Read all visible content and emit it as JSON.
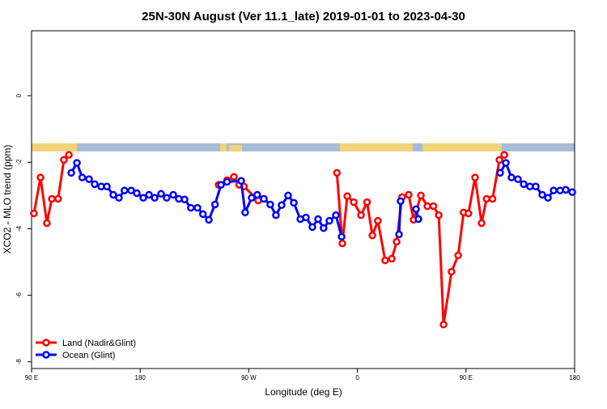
{
  "chart_data": {
    "type": "line",
    "title": "25N-30N August (Ver 11.1_late)   2019-01-01 to 2023-04-30",
    "xlabel": "Longitude (deg E)",
    "ylabel": "XCO2 - MLO trend (ppm)",
    "xlim": [
      90,
      540
    ],
    "ylim": [
      -8.2,
      1.95
    ],
    "xticks": [
      {
        "value": 90,
        "label": "90 E"
      },
      180,
      {
        "value": 270,
        "label": "90 W"
      },
      {
        "value": 360,
        "label": "0"
      },
      {
        "value": 450,
        "label": "90 E"
      },
      {
        "value": 540,
        "label": "180"
      }
    ],
    "yticks": [
      -8,
      -6,
      -4,
      -2,
      0
    ],
    "legend": "bottom-left",
    "series": [
      {
        "name": "Land (Nadir&Glint)",
        "color": "#ff0000",
        "x": [
          92,
          97.4,
          102.7,
          106.8,
          112,
          116.8,
          120.9,
          null,
          245,
          252,
          257.7,
          262,
          266,
          277.8,
          null,
          343,
          347.5,
          351.6,
          357,
          363,
          368,
          372.4,
          377,
          383,
          388.5,
          392.5,
          397,
          402.5,
          406.6,
          412.6,
          418,
          423,
          427.4,
          431.4,
          438,
          443.5,
          448,
          452,
          457.5,
          462.9,
          467,
          472,
          477.7,
          481.7
        ],
        "values": [
          -3.54,
          -2.46,
          -3.83,
          -3.1,
          -3.1,
          -1.93,
          -1.78,
          null,
          -2.68,
          -2.54,
          -2.44,
          -2.68,
          -2.73,
          -3.15,
          null,
          -2.32,
          -4.44,
          -3.02,
          -3.2,
          -3.59,
          -3.2,
          -4.2,
          -3.76,
          -4.95,
          -4.9,
          -4.39,
          -3.05,
          -2.98,
          -3.73,
          -3.0,
          -3.32,
          -3.32,
          -3.59,
          -6.88,
          -5.29,
          -4.8,
          -3.51,
          -3.54,
          -2.46,
          -3.83,
          -3.1,
          -3.1,
          -1.93,
          -1.78
        ]
      },
      {
        "name": "Ocean (Glint)",
        "color": "#0000ff",
        "x": [
          122.9,
          127.6,
          132,
          137.6,
          142.3,
          147.7,
          152.4,
          157.7,
          162.4,
          167,
          172.5,
          177.2,
          182.6,
          187.3,
          192,
          197.3,
          202,
          207.4,
          212,
          216.8,
          222,
          227.5,
          232,
          236.9,
          242,
          247,
          252,
          263.7,
          267,
          272.4,
          277,
          282.5,
          287.8,
          292.5,
          297.2,
          302.6,
          307.3,
          312.7,
          317.4,
          322.7,
          327.4,
          332,
          336.8,
          342.2,
          346.9,
          null,
          394.5,
          395.8,
          null,
          408.6,
          410.6,
          null,
          478.3,
          483,
          487.7,
          493,
          497.8,
          503,
          507.8,
          513.2,
          517.9,
          522.6,
          528,
          532.7,
          538
        ],
        "values": [
          -2.32,
          -2.02,
          -2.46,
          -2.51,
          -2.66,
          -2.73,
          -2.73,
          -2.98,
          -3.07,
          -2.85,
          -2.85,
          -2.93,
          -3.07,
          -2.98,
          -3.07,
          -2.95,
          -3.07,
          -2.98,
          -3.1,
          -3.12,
          -3.37,
          -3.37,
          -3.56,
          -3.73,
          -3.27,
          -2.68,
          -2.59,
          -2.56,
          -3.51,
          -3.07,
          -2.98,
          -3.1,
          -3.27,
          -3.59,
          -3.29,
          -3.0,
          -3.22,
          -3.71,
          -3.66,
          -3.95,
          -3.71,
          -3.98,
          -3.76,
          -3.59,
          -4.24,
          null,
          -4.17,
          -3.17,
          null,
          -3.41,
          -3.71,
          null,
          -2.32,
          -2.02,
          -2.46,
          -2.51,
          -2.66,
          -2.73,
          -2.73,
          -2.98,
          -3.07,
          -2.85,
          -2.85,
          -2.83,
          -2.9
        ]
      }
    ]
  }
}
